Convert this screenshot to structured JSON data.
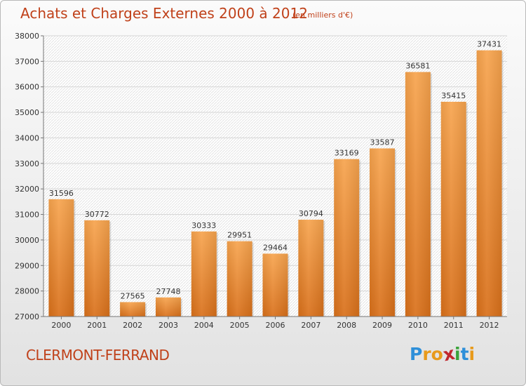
{
  "header": {
    "title": "Achats et Charges Externes 2000 à 2012",
    "subtitle": "(en milliers d'€)"
  },
  "footer": {
    "city": "CLERMONT-FERRAND",
    "logo_letters": [
      "P",
      "r",
      "o",
      "x",
      "i",
      "t",
      "i"
    ],
    "logo_colors": [
      "#2e8fd9",
      "#e89a1b",
      "#e89a1b",
      "#c0272d",
      "#3aa33a",
      "#2e8fd9",
      "#e89a1b"
    ]
  },
  "colors": {
    "bar": "#f08a28",
    "title": "#c0411a"
  },
  "chart_data": {
    "type": "bar",
    "title": "Achats et Charges Externes 2000 à 2012",
    "categories": [
      "2000",
      "2001",
      "2002",
      "2003",
      "2004",
      "2005",
      "2006",
      "2007",
      "2008",
      "2009",
      "2010",
      "2011",
      "2012"
    ],
    "values": [
      31596,
      30772,
      27565,
      27748,
      30333,
      29951,
      29464,
      30794,
      33169,
      33587,
      36581,
      35415,
      37431
    ],
    "ylim": [
      27000,
      38000
    ],
    "yticks": [
      27000,
      28000,
      29000,
      30000,
      31000,
      32000,
      33000,
      34000,
      35000,
      36000,
      37000,
      38000
    ],
    "xlabel": "",
    "ylabel": "",
    "grid": true,
    "data_labels": true
  }
}
